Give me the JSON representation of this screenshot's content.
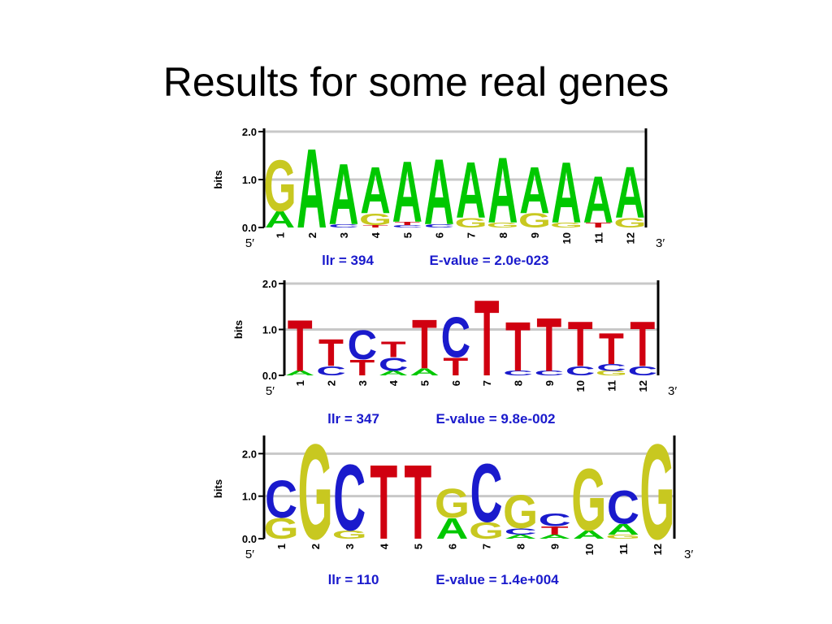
{
  "title": "Results for some real genes",
  "chart_data": [
    {
      "type": "logo",
      "ylabel": "bits",
      "ylim": [
        0,
        2
      ],
      "yticks": [
        {
          "value": 0,
          "label": "0.0"
        },
        {
          "value": 1,
          "label": "1.0"
        },
        {
          "value": 2,
          "label": "2.0"
        }
      ],
      "categories": [
        "1",
        "2",
        "3",
        "4",
        "5",
        "6",
        "7",
        "8",
        "9",
        "10",
        "11",
        "12"
      ],
      "x_start": "5′",
      "x_end": "3′",
      "annotations": [
        "llr = 394",
        "E-value = 2.0e-023"
      ],
      "series": [
        {
          "name": "A",
          "color": "#00c800",
          "values": [
            0.35,
            1.7,
            1.3,
            1.0,
            1.3,
            1.4,
            1.2,
            1.4,
            1.0,
            1.3,
            1.0,
            1.1
          ]
        },
        {
          "name": "C",
          "color": "#1a1acc",
          "values": [
            0,
            0,
            0.07,
            0,
            0.05,
            0.07,
            0,
            0,
            0,
            0,
            0,
            0
          ]
        },
        {
          "name": "G",
          "color": "#c8c820",
          "values": [
            1.1,
            0,
            0,
            0.25,
            0,
            0,
            0.2,
            0.1,
            0.3,
            0.1,
            0,
            0.2
          ]
        },
        {
          "name": "T",
          "color": "#d00010",
          "values": [
            0,
            0,
            0,
            0.05,
            0.07,
            0,
            0,
            0,
            0,
            0,
            0.1,
            0
          ]
        }
      ]
    },
    {
      "type": "logo",
      "ylabel": "bits",
      "ylim": [
        0,
        2
      ],
      "yticks": [
        {
          "value": 0,
          "label": "0.0"
        },
        {
          "value": 1,
          "label": "1.0"
        },
        {
          "value": 2,
          "label": "2.0"
        }
      ],
      "categories": [
        "1",
        "2",
        "3",
        "4",
        "5",
        "6",
        "7",
        "8",
        "9",
        "10",
        "11",
        "12"
      ],
      "x_start": "5′",
      "x_end": "3′",
      "annotations": [
        "llr = 347",
        "E-value = 9.8e-002"
      ],
      "series": [
        {
          "name": "A",
          "color": "#00c800",
          "values": [
            0.1,
            0,
            0,
            0.1,
            0.15,
            0,
            0,
            0,
            0,
            0,
            0,
            0
          ]
        },
        {
          "name": "C",
          "color": "#1a1acc",
          "values": [
            0,
            0.2,
            0.65,
            0.3,
            0,
            0.9,
            0,
            0.1,
            0.1,
            0.2,
            0.15,
            0.2
          ]
        },
        {
          "name": "G",
          "color": "#c8c820",
          "values": [
            0,
            0,
            0,
            0,
            0,
            0,
            0,
            0,
            0,
            0,
            0.1,
            0
          ]
        },
        {
          "name": "T",
          "color": "#d00010",
          "values": [
            1.15,
            0.6,
            0.35,
            0.35,
            1.1,
            0.4,
            1.7,
            1.1,
            1.2,
            1.0,
            0.7,
            1.0
          ]
        }
      ]
    },
    {
      "type": "logo",
      "ylabel": "bits",
      "ylim": [
        0,
        2.35
      ],
      "yticks": [
        {
          "value": 0,
          "label": "0.0"
        },
        {
          "value": 1,
          "label": "1.0"
        },
        {
          "value": 2,
          "label": "2.0"
        }
      ],
      "categories": [
        "1",
        "2",
        "3",
        "4",
        "5",
        "6",
        "7",
        "8",
        "9",
        "10",
        "11",
        "12"
      ],
      "x_start": "5′",
      "x_end": "3′",
      "annotations": [
        "llr = 110",
        "E-value = 1.4e+004"
      ],
      "series": [
        {
          "name": "A",
          "color": "#00c800",
          "values": [
            0,
            0,
            0,
            0,
            0,
            0.5,
            0,
            0.1,
            0.1,
            0.2,
            0.25,
            0
          ]
        },
        {
          "name": "C",
          "color": "#1a1acc",
          "values": [
            0.9,
            0,
            1.6,
            0,
            0,
            0,
            1.4,
            0.15,
            0.3,
            0,
            0.8,
            0
          ]
        },
        {
          "name": "G",
          "color": "#c8c820",
          "values": [
            0.5,
            2.3,
            0.2,
            0,
            0,
            0.7,
            0.4,
            0.8,
            0,
            1.5,
            0.1,
            2.3
          ]
        },
        {
          "name": "T",
          "color": "#d00010",
          "values": [
            0,
            0,
            0,
            1.8,
            1.8,
            0,
            0,
            0,
            0.2,
            0,
            0,
            0
          ]
        }
      ]
    }
  ]
}
